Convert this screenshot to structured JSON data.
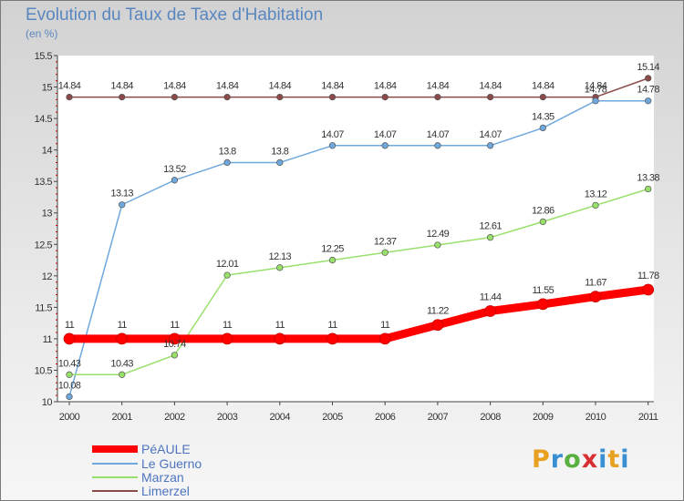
{
  "title": "Evolution du Taux de Taxe d'Habitation",
  "subtitle": "(en %)",
  "logo_text": "Proxiti",
  "chart_data": {
    "type": "line",
    "title": "Evolution du Taux de Taxe d'Habitation",
    "ylabel": "(en %)",
    "xlabel": "",
    "x": [
      "2000",
      "2001",
      "2002",
      "2003",
      "2004",
      "2005",
      "2006",
      "2007",
      "2008",
      "2009",
      "2010",
      "2011"
    ],
    "ylim": [
      10,
      15.5
    ],
    "yticks": [
      "10",
      "10.5",
      "11",
      "11.5",
      "12",
      "12.5",
      "13",
      "13.5",
      "14",
      "14.5",
      "15",
      "15.5"
    ],
    "grid": false,
    "legend_position": "bottom-left",
    "series": [
      {
        "name": "PéAULE",
        "color": "#ff0000",
        "values": [
          11,
          11,
          11,
          11,
          11,
          11,
          11,
          11.22,
          11.44,
          11.55,
          11.67,
          11.78
        ],
        "labels": [
          "11",
          "11",
          "11",
          "11",
          "11",
          "11",
          "11",
          "11.22",
          "11.44",
          "11.55",
          "11.67",
          "11.78"
        ]
      },
      {
        "name": "Le Guerno",
        "color": "#6fa8dc",
        "values": [
          10.08,
          13.13,
          13.52,
          13.8,
          13.8,
          14.07,
          14.07,
          14.07,
          14.07,
          14.35,
          14.78,
          14.78
        ],
        "labels": [
          "10.08",
          "13.13",
          "13.52",
          "13.8",
          "13.8",
          "14.07",
          "14.07",
          "14.07",
          "14.07",
          "14.35",
          "14.78",
          "14.78"
        ]
      },
      {
        "name": "Marzan",
        "color": "#99e06b",
        "values": [
          10.43,
          10.43,
          10.74,
          12.01,
          12.13,
          12.25,
          12.37,
          12.49,
          12.61,
          12.86,
          13.12,
          13.38
        ],
        "labels": [
          "10.43",
          "10.43",
          "10.74",
          "12.01",
          "12.13",
          "12.25",
          "12.37",
          "12.49",
          "12.61",
          "12.86",
          "13.12",
          "13.38"
        ]
      },
      {
        "name": "Limerzel",
        "color": "#8b4a4a",
        "values": [
          14.84,
          14.84,
          14.84,
          14.84,
          14.84,
          14.84,
          14.84,
          14.84,
          14.84,
          14.84,
          14.84,
          15.14
        ],
        "labels": [
          "14.84",
          "14.84",
          "14.84",
          "14.84",
          "14.84",
          "14.84",
          "14.84",
          "14.84",
          "14.84",
          "14.84",
          "14.84",
          "15.14"
        ]
      }
    ]
  }
}
